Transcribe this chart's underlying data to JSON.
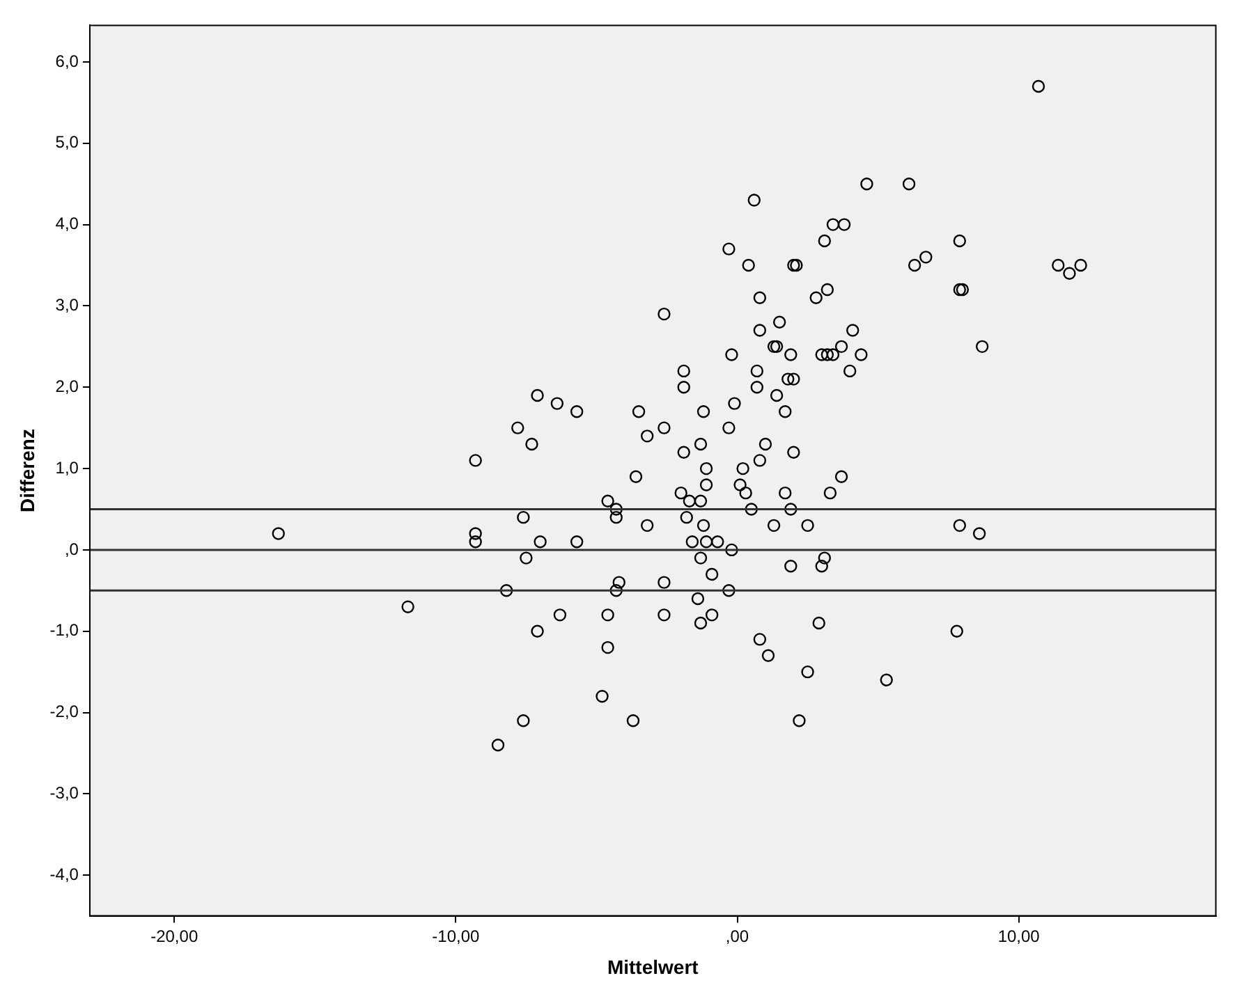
{
  "chart_data": {
    "type": "scatter",
    "xlabel": "Mittelwert",
    "ylabel": "Differenz",
    "x": [
      -16.3,
      -11.7,
      -9.3,
      -9.3,
      -9.3,
      -8.5,
      -8.2,
      -7.8,
      -7.6,
      -7.6,
      -7.5,
      -7.3,
      -7.1,
      -7.1,
      -7.0,
      -6.4,
      -6.3,
      -5.7,
      -5.7,
      -4.8,
      -4.6,
      -4.6,
      -4.6,
      -4.3,
      -4.3,
      -4.2,
      -4.3,
      -3.7,
      -3.6,
      -3.5,
      -3.2,
      -3.2,
      -2.6,
      -2.6,
      -2.6,
      -2.6,
      -2.0,
      -1.9,
      -1.9,
      -1.9,
      -1.8,
      -1.7,
      -1.6,
      -1.4,
      -1.3,
      -1.3,
      -1.3,
      -1.3,
      -1.2,
      -1.2,
      -1.1,
      -1.1,
      -1.1,
      -0.9,
      -0.9,
      -0.7,
      -0.3,
      -0.3,
      -0.3,
      -0.2,
      -0.2,
      -0.1,
      0.1,
      0.2,
      0.3,
      0.4,
      0.5,
      0.6,
      0.7,
      0.7,
      0.8,
      0.8,
      0.8,
      0.8,
      1.0,
      1.1,
      1.3,
      1.3,
      1.4,
      1.4,
      1.5,
      1.7,
      1.7,
      1.8,
      1.9,
      1.9,
      1.9,
      2.0,
      2.0,
      2.0,
      2.1,
      2.2,
      2.5,
      2.5,
      2.8,
      2.9,
      3.0,
      3.0,
      3.1,
      3.1,
      3.2,
      3.2,
      3.3,
      3.4,
      3.4,
      3.7,
      3.7,
      3.8,
      4.0,
      4.1,
      4.4,
      4.6,
      5.3,
      6.1,
      6.3,
      6.7,
      7.8,
      7.9,
      7.9,
      7.9,
      8.0,
      8.6,
      8.7,
      10.7,
      11.4,
      11.8,
      12.2
    ],
    "values": [
      0.2,
      -0.7,
      1.1,
      0.2,
      0.1,
      -2.4,
      -0.5,
      1.5,
      0.4,
      -2.1,
      -0.1,
      1.3,
      1.9,
      -1.0,
      0.1,
      1.8,
      -0.8,
      1.7,
      0.1,
      -1.8,
      0.6,
      -0.8,
      -1.2,
      0.5,
      0.4,
      -0.4,
      -0.5,
      -2.1,
      0.9,
      1.7,
      1.4,
      0.3,
      2.9,
      1.5,
      -0.4,
      -0.8,
      0.7,
      2.2,
      2.0,
      1.2,
      0.4,
      0.6,
      0.1,
      -0.6,
      1.3,
      -0.1,
      0.6,
      -0.9,
      1.7,
      0.3,
      1.0,
      0.8,
      0.1,
      -0.3,
      -0.8,
      0.1,
      3.7,
      1.5,
      -0.5,
      2.4,
      0.0,
      1.8,
      0.8,
      1.0,
      0.7,
      3.5,
      0.5,
      4.3,
      2.2,
      2.0,
      3.1,
      2.7,
      1.1,
      -1.1,
      1.3,
      -1.3,
      2.5,
      0.3,
      2.5,
      1.9,
      2.8,
      1.7,
      0.7,
      2.1,
      2.4,
      -0.2,
      0.5,
      2.1,
      3.5,
      1.2,
      3.5,
      -2.1,
      -1.5,
      0.3,
      3.1,
      -0.9,
      2.4,
      -0.2,
      -0.1,
      3.8,
      2.4,
      3.2,
      0.7,
      2.4,
      4.0,
      0.9,
      2.5,
      4.0,
      2.2,
      2.7,
      2.4,
      4.5,
      -1.6,
      4.5,
      3.5,
      3.6,
      -1.0,
      3.8,
      3.2,
      0.3,
      3.2,
      0.2,
      2.5,
      5.7,
      3.5,
      3.4,
      3.5
    ],
    "color": "#000000",
    "marker": "circle",
    "grid": false,
    "legend": false,
    "xlim": [
      -23,
      17
    ],
    "ylim": [
      -4.5,
      6.45
    ],
    "xticks": [
      {
        "value": -20,
        "label": "-20,00"
      },
      {
        "value": -10,
        "label": "-10,00"
      },
      {
        "value": 0,
        "label": ",00"
      },
      {
        "value": 10,
        "label": "10,00"
      }
    ],
    "yticks": [
      {
        "value": -4,
        "label": "-4,0"
      },
      {
        "value": -3,
        "label": "-3,0"
      },
      {
        "value": -2,
        "label": "-2,0"
      },
      {
        "value": -1,
        "label": "-1,0"
      },
      {
        "value": 0,
        "label": ",0"
      },
      {
        "value": 1,
        "label": "1,0"
      },
      {
        "value": 2,
        "label": "2,0"
      },
      {
        "value": 3,
        "label": "3,0"
      },
      {
        "value": 4,
        "label": "4,0"
      },
      {
        "value": 5,
        "label": "5,0"
      },
      {
        "value": 6,
        "label": "6,0"
      }
    ],
    "ref_lines": [
      {
        "axis": "y",
        "value": 0.5,
        "color": "#333333"
      },
      {
        "axis": "y",
        "value": 0,
        "color": "#333333"
      },
      {
        "axis": "y",
        "value": -0.5,
        "color": "#333333"
      }
    ]
  }
}
